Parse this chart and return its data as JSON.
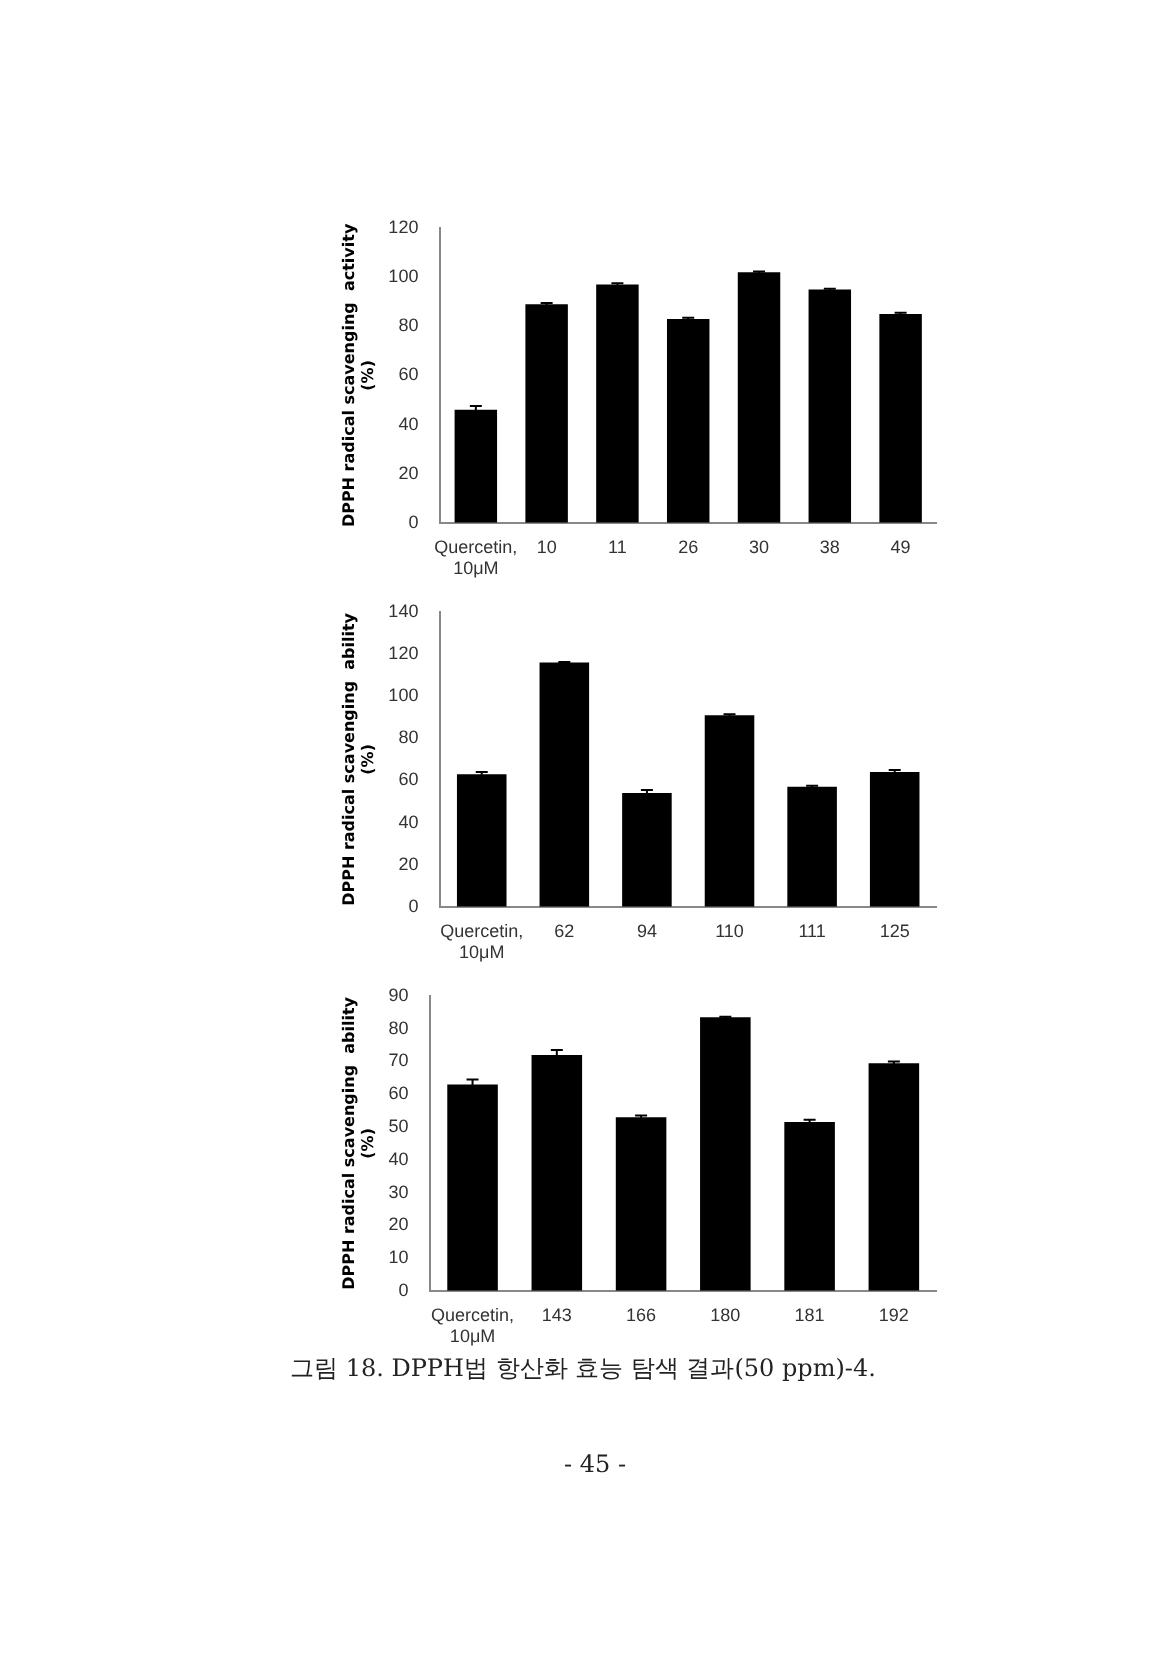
{
  "chart_data": [
    {
      "type": "bar",
      "ylabel": "DPPH radical scavenging  activity\n(%)",
      "categories": [
        "Quercetin,\n10μM",
        "10",
        "11",
        "26",
        "30",
        "38",
        "49"
      ],
      "values": [
        46,
        89,
        97,
        83,
        102,
        95,
        85
      ],
      "errors": [
        1.5,
        0.5,
        0.5,
        0.5,
        0.3,
        0.3,
        0.5
      ],
      "color": "#000000",
      "ylim": [
        0,
        120
      ],
      "yticks": [
        0,
        20,
        40,
        60,
        80,
        100,
        120
      ],
      "grid": false
    },
    {
      "type": "bar",
      "ylabel": "DPPH radical scavenging  ability\n(%)",
      "categories": [
        "Quercetin,\n10μM",
        "62",
        "94",
        "110",
        "111",
        "125"
      ],
      "values": [
        63,
        116,
        54,
        91,
        57,
        64
      ],
      "errors": [
        1,
        0.3,
        1.5,
        0.5,
        0.5,
        1
      ],
      "color": "#000000",
      "ylim": [
        0,
        140
      ],
      "yticks": [
        0,
        20,
        40,
        60,
        80,
        100,
        120,
        140
      ],
      "grid": false
    },
    {
      "type": "bar",
      "ylabel": "DPPH radical scavenging  ability\n(%)",
      "categories": [
        "Quercetin,\n10μM",
        "143",
        "166",
        "180",
        "181",
        "192"
      ],
      "values": [
        63,
        72,
        53,
        83.5,
        51.5,
        69.5
      ],
      "errors": [
        1.5,
        1.5,
        0.5,
        0.2,
        0.7,
        0.5
      ],
      "color": "#000000",
      "ylim": [
        0,
        90
      ],
      "yticks": [
        0,
        10,
        20,
        30,
        40,
        50,
        60,
        70,
        80,
        90
      ],
      "grid": false,
      "annotations": [
        "그림 18. DPPH법 항산화 효능 탐색 결과(50 ppm)-4.",
        "- 45 -"
      ]
    }
  ]
}
